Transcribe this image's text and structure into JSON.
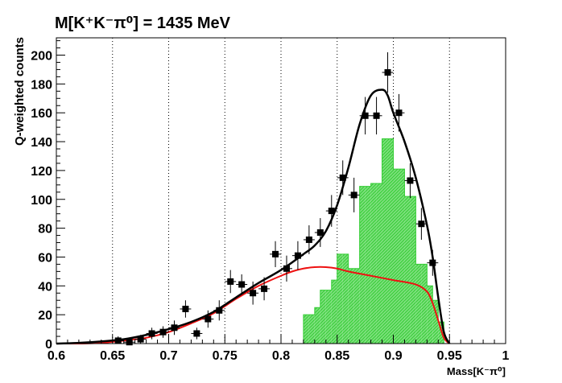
{
  "chart_data": {
    "type": "histogram",
    "title": "M[K⁺K⁻π⁰] = 1435 MeV",
    "xlabel": "Mass[K⁻π⁰]",
    "ylabel": "Q-weighted counts",
    "xlim": [
      0.6,
      1.0
    ],
    "ylim": [
      0,
      212
    ],
    "xticks": [
      "0.6",
      "0.65",
      "0.7",
      "0.75",
      "0.8",
      "0.85",
      "0.9",
      "0.95",
      "1"
    ],
    "yticks": [
      "0",
      "20",
      "40",
      "60",
      "80",
      "100",
      "120",
      "140",
      "160",
      "180",
      "200"
    ],
    "vertical_gridlines": [
      0.65,
      0.7,
      0.75,
      0.8,
      0.85,
      0.9,
      0.95
    ],
    "colors": {
      "data": "#000000",
      "fit_total": "#000000",
      "fit_background": "#ee1111",
      "signal_hist": "#33cc33"
    },
    "points": {
      "x": [
        0.655,
        0.665,
        0.675,
        0.685,
        0.695,
        0.705,
        0.715,
        0.725,
        0.735,
        0.745,
        0.755,
        0.765,
        0.775,
        0.785,
        0.795,
        0.805,
        0.815,
        0.825,
        0.835,
        0.845,
        0.855,
        0.865,
        0.875,
        0.885,
        0.895,
        0.905,
        0.915,
        0.925,
        0.935
      ],
      "y": [
        2,
        1,
        3,
        7,
        8,
        11,
        24,
        7,
        17,
        23,
        43,
        41,
        35,
        38,
        62,
        52,
        61,
        72,
        77,
        92,
        115,
        103,
        158,
        158,
        188,
        160,
        113,
        83,
        56
      ],
      "yerr": [
        3,
        2,
        3,
        4,
        4,
        5,
        6,
        4,
        6,
        7,
        8,
        7,
        8,
        8,
        9,
        9,
        10,
        10,
        10,
        11,
        12,
        12,
        13,
        13,
        14,
        13,
        12,
        11,
        9
      ]
    },
    "signal_hist": {
      "bins": [
        0.82,
        0.825,
        0.83,
        0.835,
        0.84,
        0.845,
        0.85,
        0.855,
        0.86,
        0.865,
        0.87,
        0.875,
        0.88,
        0.885,
        0.89,
        0.895,
        0.9,
        0.905,
        0.91,
        0.915,
        0.92,
        0.925,
        0.93,
        0.935,
        0.94,
        0.945
      ],
      "values": [
        20,
        20,
        25,
        37,
        37,
        44,
        62,
        62,
        52,
        52,
        109,
        109,
        111,
        111,
        142,
        142,
        121,
        121,
        102,
        102,
        55,
        55,
        40,
        30,
        15
      ]
    },
    "fit_total": {
      "x": [
        0.6,
        0.62,
        0.64,
        0.66,
        0.68,
        0.7,
        0.72,
        0.74,
        0.76,
        0.78,
        0.8,
        0.82,
        0.83,
        0.84,
        0.85,
        0.86,
        0.87,
        0.88,
        0.89,
        0.895,
        0.9,
        0.91,
        0.92,
        0.93,
        0.935,
        0.94,
        0.945,
        0.95
      ],
      "y": [
        0,
        0.5,
        1.5,
        3,
        6,
        10,
        15,
        22,
        32,
        42,
        51,
        62,
        68,
        78,
        96,
        122,
        152,
        172,
        176,
        172,
        160,
        140,
        115,
        82,
        60,
        32,
        8,
        0
      ]
    },
    "fit_background": {
      "x": [
        0.6,
        0.62,
        0.64,
        0.66,
        0.68,
        0.7,
        0.72,
        0.74,
        0.76,
        0.78,
        0.8,
        0.81,
        0.82,
        0.83,
        0.84,
        0.85,
        0.86,
        0.88,
        0.9,
        0.92,
        0.93,
        0.935,
        0.94,
        0.945,
        0.95
      ],
      "y": [
        0,
        0,
        0.5,
        2,
        4,
        8,
        14,
        21,
        31,
        40,
        47,
        50,
        52,
        53,
        53,
        52,
        50,
        47,
        44,
        41,
        36,
        28,
        16,
        4,
        0
      ]
    }
  }
}
